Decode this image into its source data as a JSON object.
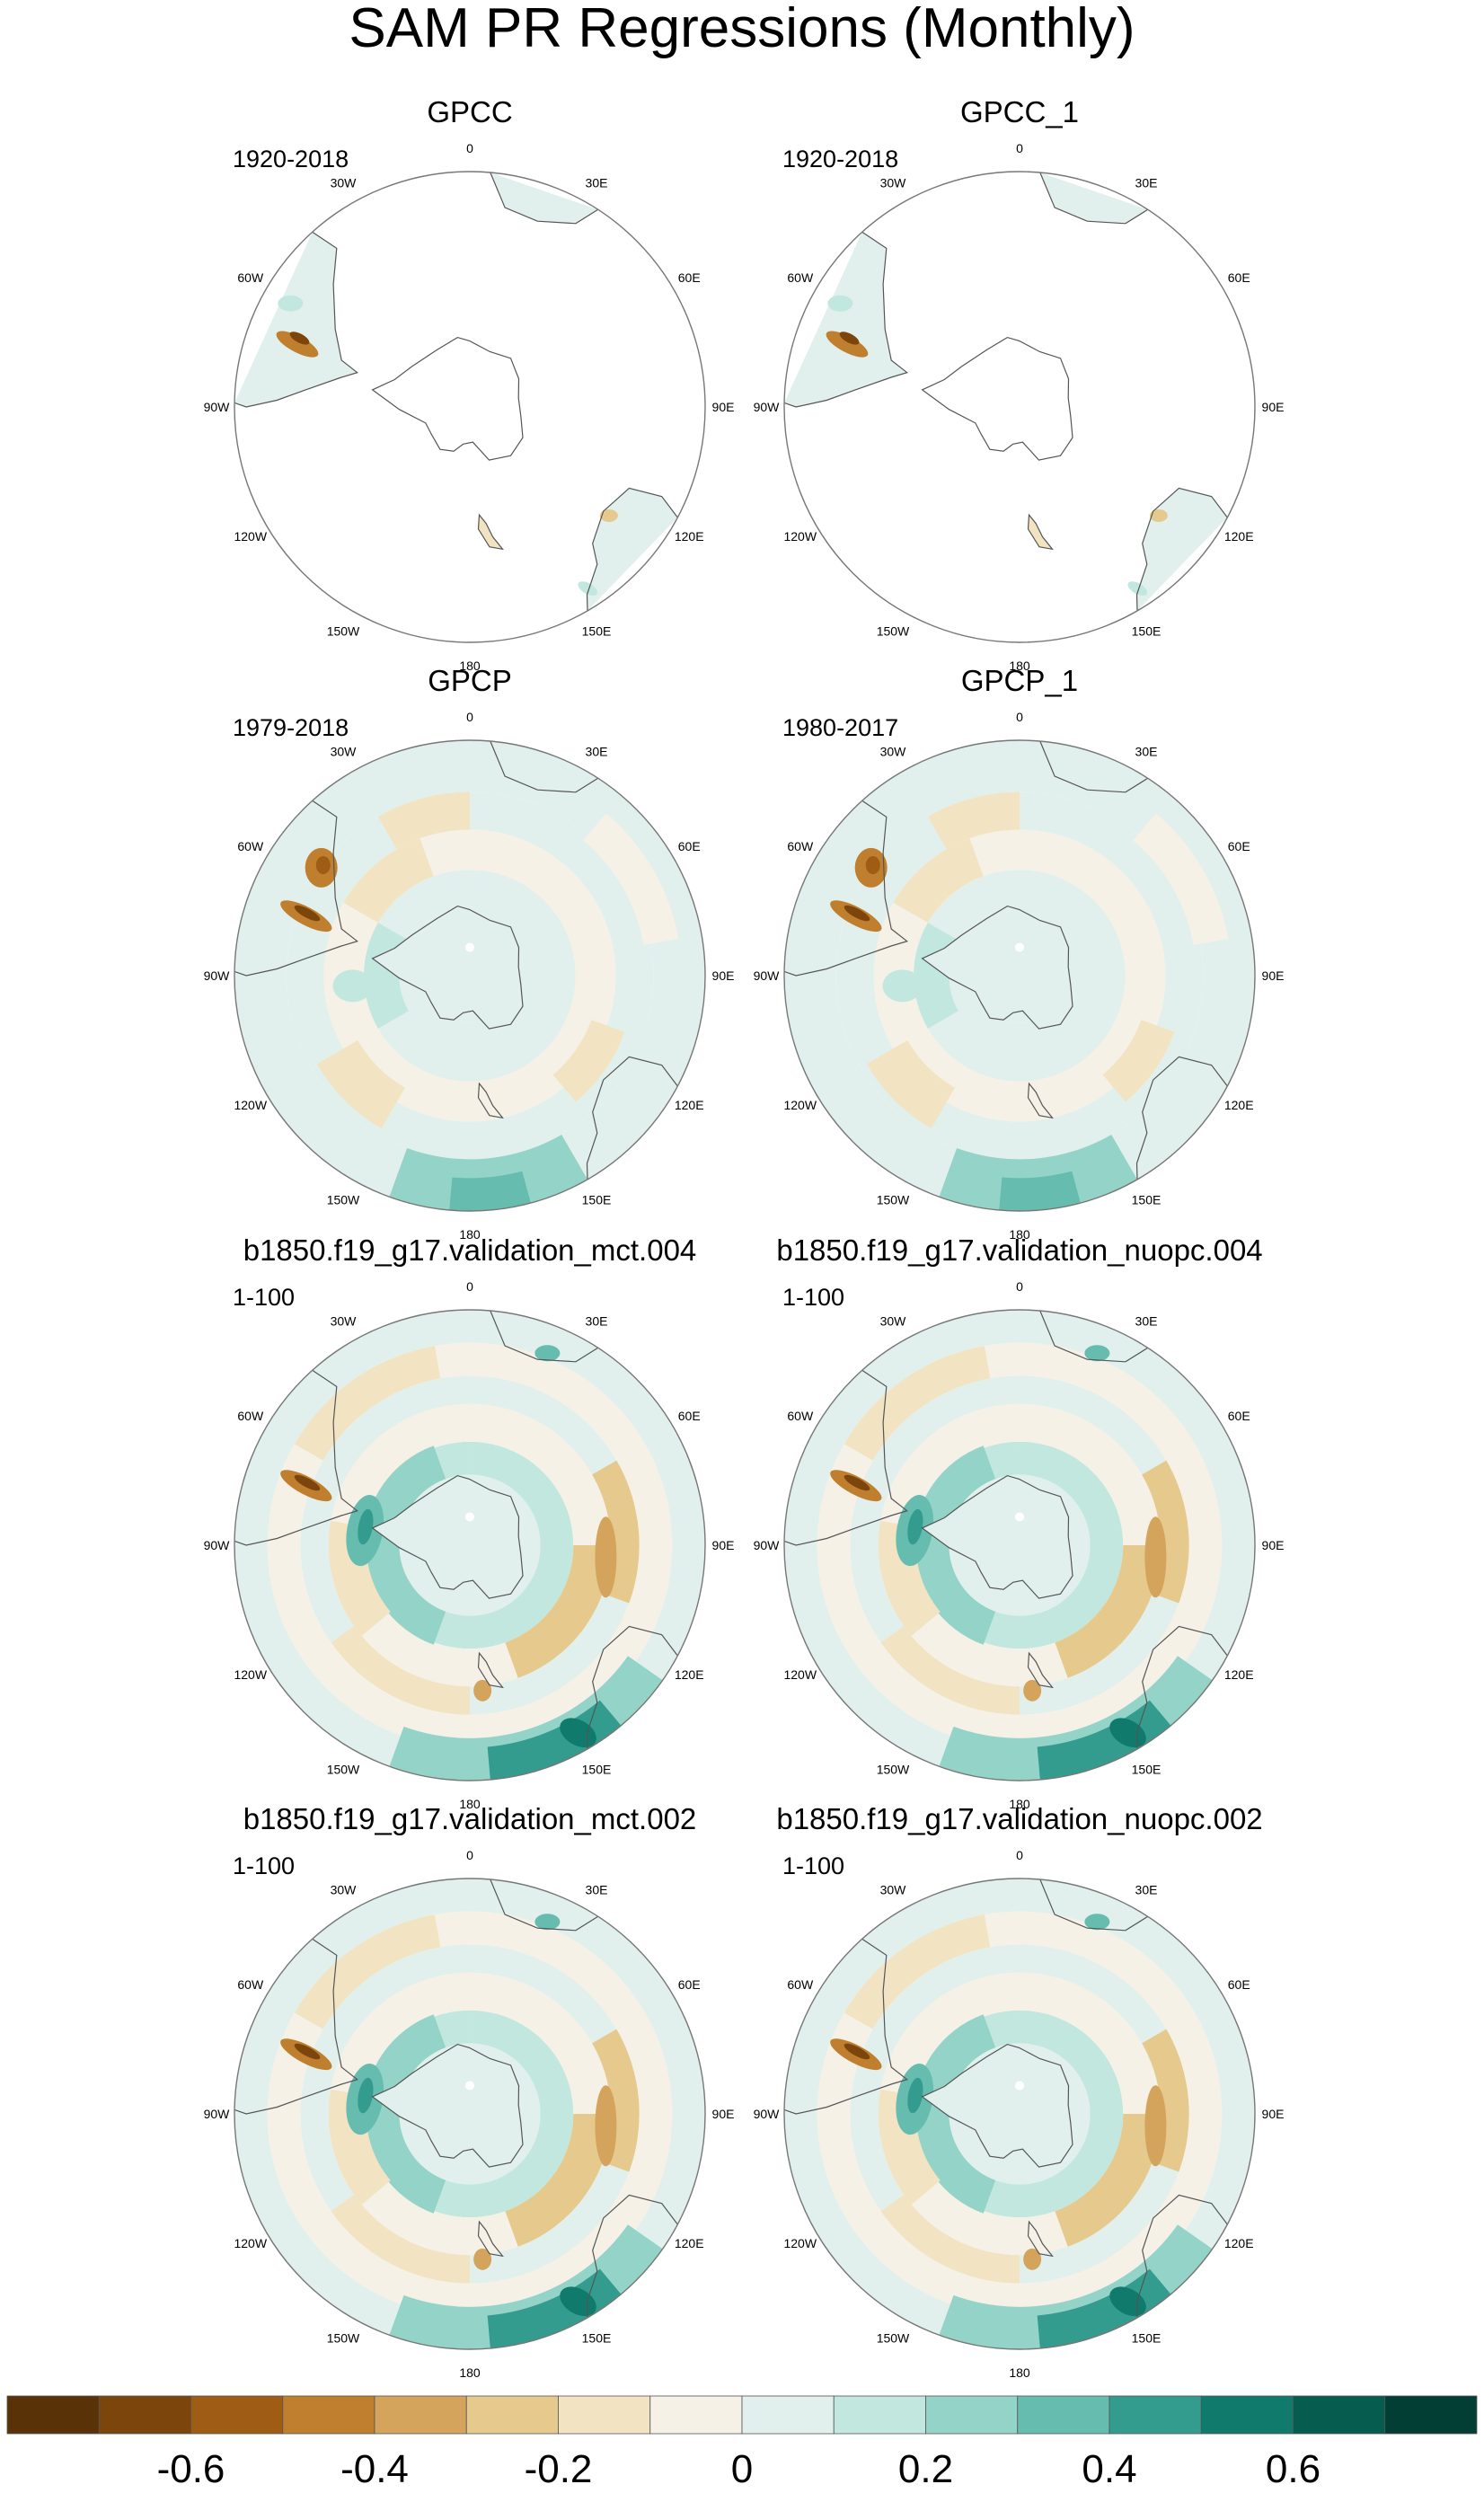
{
  "title": "SAM PR Regressions (Monthly)",
  "lon_labels": [
    "0",
    "30E",
    "60E",
    "90E",
    "120E",
    "150E",
    "180",
    "150W",
    "120W",
    "90W",
    "60W",
    "30W"
  ],
  "panels": [
    {
      "name": "GPCC",
      "period": "1920-2018",
      "pattern": "gpcc"
    },
    {
      "name": "GPCC_1",
      "period": "1920-2018",
      "pattern": "gpcc"
    },
    {
      "name": "GPCP",
      "period": "1979-2018",
      "pattern": "obs"
    },
    {
      "name": "GPCP_1",
      "period": "1980-2017",
      "pattern": "obs"
    },
    {
      "name": "b1850.f19_g17.validation_mct.004",
      "period": "1-100",
      "pattern": "model"
    },
    {
      "name": "b1850.f19_g17.validation_nuopc.004",
      "period": "1-100",
      "pattern": "model"
    },
    {
      "name": "b1850.f19_g17.validation_mct.002",
      "period": "1-100",
      "pattern": "model"
    },
    {
      "name": "b1850.f19_g17.validation_nuopc.002",
      "period": "1-100",
      "pattern": "model"
    }
  ],
  "colorbar": {
    "levels": [
      -0.7,
      -0.6,
      -0.5,
      -0.4,
      -0.3,
      -0.2,
      -0.1,
      0,
      0.1,
      0.2,
      0.3,
      0.4,
      0.5,
      0.6,
      0.7
    ],
    "colors": [
      "#5a3208",
      "#7c450c",
      "#9e5c14",
      "#c07f2e",
      "#d4a45c",
      "#e6c98c",
      "#f2e4c2",
      "#f5f1e6",
      "#e2f0ed",
      "#c2e7df",
      "#94d4c8",
      "#66bcaf",
      "#339c8e",
      "#107a6c",
      "#075c50",
      "#023e34"
    ],
    "tick_labels": [
      "-0.6",
      "-0.4",
      "-0.2",
      "0",
      "0.2",
      "0.4",
      "0.6"
    ]
  }
}
